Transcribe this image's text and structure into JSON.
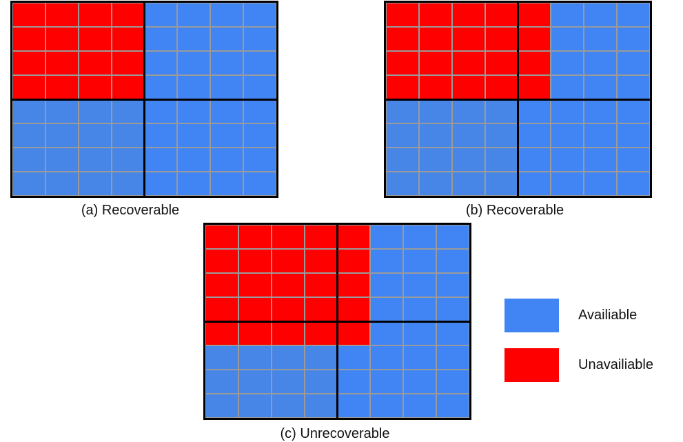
{
  "colors": {
    "available": "#4185f4",
    "available_alt": "#4786e6",
    "unavailable": "#ff0000",
    "border": "#000000",
    "gridline": "#9a9a9a"
  },
  "panels": [
    {
      "caption": "(a) Recoverable",
      "unavailable_cols": [
        [
          0,
          1,
          2,
          3
        ],
        [
          0,
          1,
          2,
          3
        ],
        [
          0,
          1,
          2,
          3
        ],
        [
          0,
          1,
          2,
          3
        ],
        [],
        [],
        [],
        []
      ]
    },
    {
      "caption": "(b) Recoverable",
      "unavailable_cols": [
        [
          0,
          1,
          2,
          3,
          4
        ],
        [
          0,
          1,
          2,
          3,
          4
        ],
        [
          0,
          1,
          2,
          3,
          4
        ],
        [
          0,
          1,
          2,
          3,
          4
        ],
        [],
        [],
        [],
        []
      ]
    },
    {
      "caption": "(c) Unrecoverable",
      "unavailable_cols": [
        [
          0,
          1,
          2,
          3,
          4
        ],
        [
          0,
          1,
          2,
          3,
          4
        ],
        [
          0,
          1,
          2,
          3,
          4
        ],
        [
          0,
          1,
          2,
          3,
          4
        ],
        [
          0,
          1,
          2,
          3,
          4
        ],
        [],
        [],
        []
      ]
    }
  ],
  "legend": {
    "available_label": "Availiable",
    "unavailable_label": "Unavailiable"
  }
}
